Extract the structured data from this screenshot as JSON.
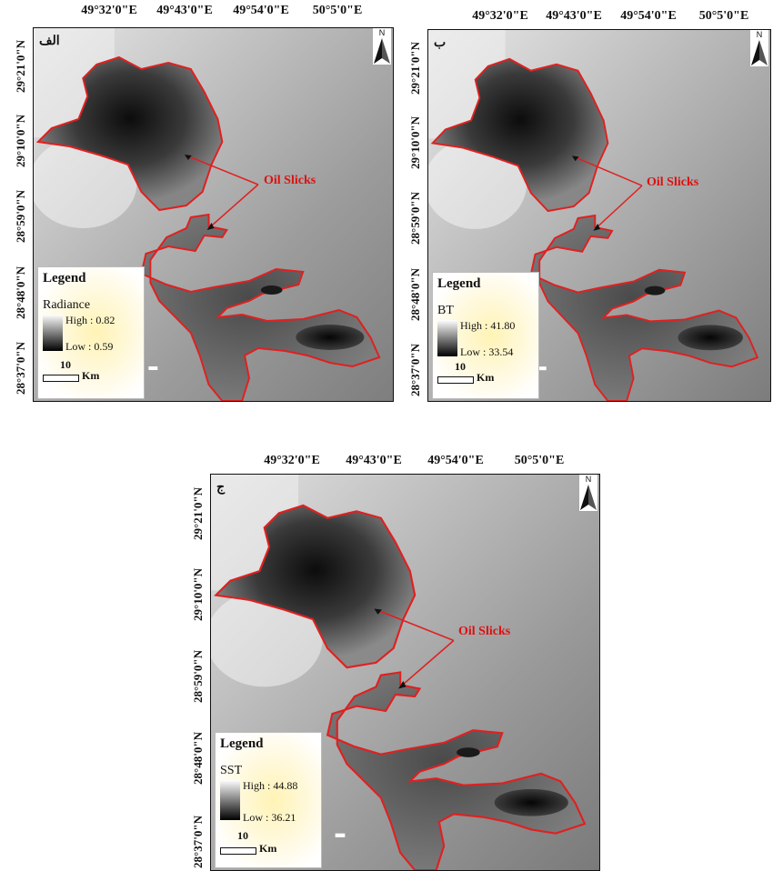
{
  "panels": [
    {
      "label": "الف",
      "variable": "Radiance",
      "high": "High : 0.82",
      "low": "Low : 0.59"
    },
    {
      "label": "ب",
      "variable": "BT",
      "high": "High : 41.80",
      "low": "Low : 33.54"
    },
    {
      "label": "ج",
      "variable": "SST",
      "high": "High : 44.88",
      "low": "Low : 36.21"
    }
  ],
  "longitude_labels": [
    "49°32'0\"E",
    "49°43'0\"E",
    "49°54'0\"E",
    "50°5'0\"E"
  ],
  "latitude_labels": [
    "29°21'0\"N",
    "29°10'0\"N",
    "28°59'0\"N",
    "28°48'0\"N",
    "28°37'0\"N"
  ],
  "annotation": "Oil Slicks",
  "legend_title": "Legend",
  "scale_value": "10",
  "scale_unit": "Km",
  "north_label": "N",
  "colors": {
    "slick_outline": "#e02020",
    "annotation": "#d11111",
    "legend_glow": "#fff3b5"
  },
  "icons": [
    "north-arrow-icon"
  ]
}
